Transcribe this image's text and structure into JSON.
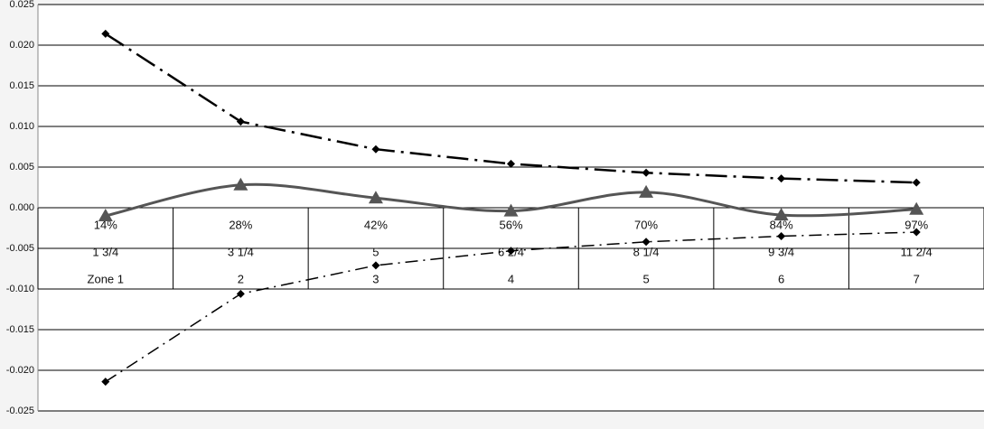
{
  "chart_data": {
    "type": "line",
    "categories": [
      "Zone 1",
      "2",
      "3",
      "4",
      "5",
      "6",
      "7"
    ],
    "category_levels": [
      [
        "14%",
        "28%",
        "42%",
        "56%",
        "70%",
        "84%",
        "97%"
      ],
      [
        "1 3/4",
        "3 1/4",
        "5",
        "6 2/4",
        "8 1/4",
        "9 3/4",
        "11 2/4"
      ]
    ],
    "series": [
      {
        "color": "#000000",
        "style": "dash-dot",
        "marker": "diamond",
        "values": [
          0.0214,
          0.0106,
          0.0072,
          0.0054,
          0.0043,
          0.0036,
          0.0031
        ]
      },
      {
        "color": "#000000",
        "style": "dash-dot-fine",
        "marker": "diamond",
        "values": [
          -0.0214,
          -0.0106,
          -0.0071,
          -0.0053,
          -0.0042,
          -0.0035,
          -0.003
        ]
      },
      {
        "color": "#555555",
        "style": "smooth",
        "marker": "triangle",
        "values": [
          -0.001,
          0.0028,
          0.0012,
          -0.0004,
          0.0019,
          -0.0009,
          -0.0002
        ]
      }
    ],
    "ylim": [
      -0.025,
      0.025
    ],
    "yticks": [
      -0.025,
      {
        "value": -0.02,
        "label": "-0.020"
      },
      -0.015,
      {
        "value": -0.01,
        "label": "-0.010"
      },
      -0.005,
      {
        "value": 0,
        "label": "0.000"
      },
      0.005,
      {
        "value": 0.01,
        "label": "0.010"
      },
      0.015,
      {
        "value": 0.02,
        "label": "0.020"
      },
      0.025
    ],
    "grid": true
  }
}
